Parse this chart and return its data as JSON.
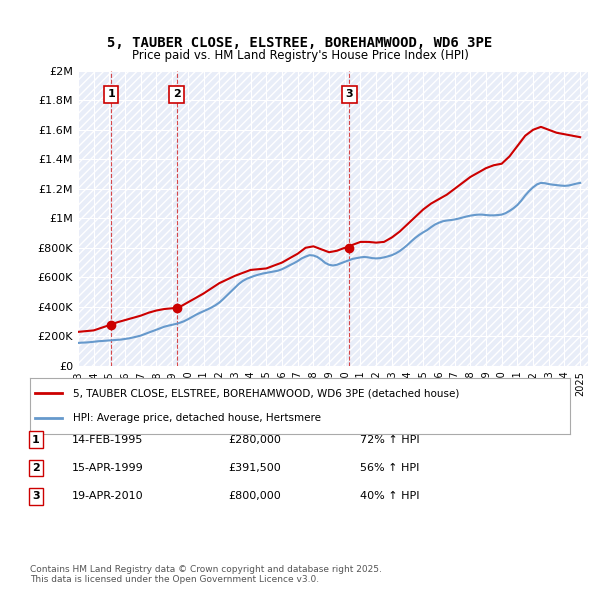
{
  "title": "5, TAUBER CLOSE, ELSTREE, BOREHAMWOOD, WD6 3PE",
  "subtitle": "Price paid vs. HM Land Registry's House Price Index (HPI)",
  "xlabel": "",
  "ylabel": "",
  "ylim": [
    0,
    2000000
  ],
  "yticks": [
    0,
    200000,
    400000,
    600000,
    800000,
    1000000,
    1200000,
    1400000,
    1600000,
    1800000,
    2000000
  ],
  "ytick_labels": [
    "£0",
    "£200K",
    "£400K",
    "£600K",
    "£800K",
    "£1M",
    "£1.2M",
    "£1.4M",
    "£1.6M",
    "£1.8M",
    "£2M"
  ],
  "background_color": "#ffffff",
  "plot_bg_color": "#f0f4ff",
  "grid_color": "#ffffff",
  "hatch_pattern": "////",
  "red_line_color": "#cc0000",
  "blue_line_color": "#6699cc",
  "transactions": [
    {
      "year": 1995.12,
      "price": 280000,
      "label": "1"
    },
    {
      "year": 1999.29,
      "price": 391500,
      "label": "2"
    },
    {
      "year": 2010.3,
      "price": 800000,
      "label": "3"
    }
  ],
  "transaction_box_color": "#cc0000",
  "legend_items": [
    {
      "label": "5, TAUBER CLOSE, ELSTREE, BOREHAMWOOD, WD6 3PE (detached house)",
      "color": "#cc0000"
    },
    {
      "label": "HPI: Average price, detached house, Hertsmere",
      "color": "#6699cc"
    }
  ],
  "table_rows": [
    {
      "num": "1",
      "date": "14-FEB-1995",
      "price": "£280,000",
      "hpi": "72% ↑ HPI"
    },
    {
      "num": "2",
      "date": "15-APR-1999",
      "price": "£391,500",
      "hpi": "56% ↑ HPI"
    },
    {
      "num": "3",
      "date": "19-APR-2010",
      "price": "£800,000",
      "hpi": "40% ↑ HPI"
    }
  ],
  "footer": "Contains HM Land Registry data © Crown copyright and database right 2025.\nThis data is licensed under the Open Government Licence v3.0.",
  "hpi_data": {
    "years": [
      1993.0,
      1993.25,
      1993.5,
      1993.75,
      1994.0,
      1994.25,
      1994.5,
      1994.75,
      1995.0,
      1995.25,
      1995.5,
      1995.75,
      1996.0,
      1996.25,
      1996.5,
      1996.75,
      1997.0,
      1997.25,
      1997.5,
      1997.75,
      1998.0,
      1998.25,
      1998.5,
      1998.75,
      1999.0,
      1999.25,
      1999.5,
      1999.75,
      2000.0,
      2000.25,
      2000.5,
      2000.75,
      2001.0,
      2001.25,
      2001.5,
      2001.75,
      2002.0,
      2002.25,
      2002.5,
      2002.75,
      2003.0,
      2003.25,
      2003.5,
      2003.75,
      2004.0,
      2004.25,
      2004.5,
      2004.75,
      2005.0,
      2005.25,
      2005.5,
      2005.75,
      2006.0,
      2006.25,
      2006.5,
      2006.75,
      2007.0,
      2007.25,
      2007.5,
      2007.75,
      2008.0,
      2008.25,
      2008.5,
      2008.75,
      2009.0,
      2009.25,
      2009.5,
      2009.75,
      2010.0,
      2010.25,
      2010.5,
      2010.75,
      2011.0,
      2011.25,
      2011.5,
      2011.75,
      2012.0,
      2012.25,
      2012.5,
      2012.75,
      2013.0,
      2013.25,
      2013.5,
      2013.75,
      2014.0,
      2014.25,
      2014.5,
      2014.75,
      2015.0,
      2015.25,
      2015.5,
      2015.75,
      2016.0,
      2016.25,
      2016.5,
      2016.75,
      2017.0,
      2017.25,
      2017.5,
      2017.75,
      2018.0,
      2018.25,
      2018.5,
      2018.75,
      2019.0,
      2019.25,
      2019.5,
      2019.75,
      2020.0,
      2020.25,
      2020.5,
      2020.75,
      2021.0,
      2021.25,
      2021.5,
      2021.75,
      2022.0,
      2022.25,
      2022.5,
      2022.75,
      2023.0,
      2023.25,
      2023.5,
      2023.75,
      2024.0,
      2024.25,
      2024.5,
      2024.75,
      2025.0
    ],
    "values": [
      155000,
      157000,
      158000,
      160000,
      163000,
      166000,
      168000,
      170000,
      172000,
      174000,
      176000,
      178000,
      182000,
      186000,
      192000,
      198000,
      205000,
      215000,
      225000,
      235000,
      245000,
      255000,
      265000,
      272000,
      278000,
      284000,
      292000,
      302000,
      315000,
      330000,
      345000,
      358000,
      370000,
      382000,
      395000,
      410000,
      428000,
      452000,
      478000,
      505000,
      530000,
      555000,
      575000,
      590000,
      600000,
      610000,
      618000,
      625000,
      630000,
      635000,
      640000,
      645000,
      655000,
      668000,
      682000,
      695000,
      710000,
      728000,
      740000,
      750000,
      748000,
      738000,
      720000,
      698000,
      685000,
      680000,
      685000,
      695000,
      705000,
      715000,
      725000,
      730000,
      735000,
      738000,
      735000,
      730000,
      728000,
      730000,
      735000,
      742000,
      750000,
      762000,
      778000,
      798000,
      820000,
      845000,
      868000,
      888000,
      905000,
      920000,
      940000,
      958000,
      970000,
      980000,
      985000,
      988000,
      992000,
      998000,
      1005000,
      1012000,
      1018000,
      1022000,
      1025000,
      1025000,
      1022000,
      1020000,
      1020000,
      1022000,
      1025000,
      1035000,
      1050000,
      1068000,
      1090000,
      1120000,
      1155000,
      1185000,
      1210000,
      1230000,
      1240000,
      1238000,
      1232000,
      1228000,
      1225000,
      1222000,
      1220000,
      1222000,
      1228000,
      1235000,
      1240000
    ]
  },
  "property_data": {
    "years": [
      1993.0,
      1994.0,
      1995.12,
      1995.5,
      1996.0,
      1997.0,
      1997.5,
      1998.0,
      1998.5,
      1999.0,
      1999.29,
      1999.5,
      2000.0,
      2000.5,
      2001.0,
      2002.0,
      2003.0,
      2004.0,
      2005.0,
      2006.0,
      2007.0,
      2007.5,
      2008.0,
      2008.5,
      2009.0,
      2009.5,
      2010.0,
      2010.3,
      2010.5,
      2011.0,
      2011.5,
      2012.0,
      2012.5,
      2013.0,
      2013.5,
      2014.0,
      2014.5,
      2015.0,
      2015.5,
      2016.0,
      2016.5,
      2017.0,
      2017.5,
      2018.0,
      2018.5,
      2019.0,
      2019.5,
      2020.0,
      2020.5,
      2021.0,
      2021.5,
      2022.0,
      2022.5,
      2023.0,
      2023.5,
      2024.0,
      2024.5,
      2025.0
    ],
    "values": [
      230000,
      240000,
      280000,
      295000,
      310000,
      340000,
      360000,
      375000,
      385000,
      390000,
      391500,
      400000,
      430000,
      460000,
      490000,
      560000,
      610000,
      650000,
      660000,
      700000,
      760000,
      800000,
      810000,
      790000,
      770000,
      780000,
      800000,
      800000,
      820000,
      840000,
      840000,
      835000,
      840000,
      870000,
      910000,
      960000,
      1010000,
      1060000,
      1100000,
      1130000,
      1160000,
      1200000,
      1240000,
      1280000,
      1310000,
      1340000,
      1360000,
      1370000,
      1420000,
      1490000,
      1560000,
      1600000,
      1620000,
      1600000,
      1580000,
      1570000,
      1560000,
      1550000
    ]
  },
  "xmin": 1993.0,
  "xmax": 2025.5
}
